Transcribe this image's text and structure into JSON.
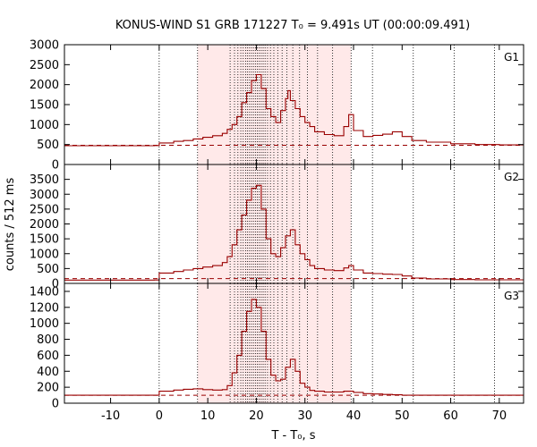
{
  "chart_data": {
    "type": "line",
    "title": "KONUS-WIND S1 GRB 171227 T₀ = 9.491s UT (00:00:09.491)",
    "xlabel": "T - T₀, s",
    "ylabel": "counts / 512 ms",
    "xlim": [
      -19.5,
      75
    ],
    "x_ticks": [
      -10,
      0,
      10,
      20,
      30,
      40,
      50,
      60,
      70
    ],
    "highlight_region": [
      7.9,
      39.5
    ],
    "colors": {
      "curve": "#990000",
      "background_level": "#990000",
      "highlight": "#ff9999",
      "frame": "#000000"
    },
    "panels": [
      {
        "name": "G1",
        "ylim": [
          0,
          3000
        ],
        "y_ticks": [
          0,
          500,
          1000,
          1500,
          2000,
          2500,
          3000
        ],
        "background_level": 480,
        "points": [
          [
            -19.5,
            470
          ],
          [
            -15,
            470
          ],
          [
            -10,
            470
          ],
          [
            -5,
            470
          ],
          [
            -1,
            475
          ],
          [
            0,
            540
          ],
          [
            3,
            580
          ],
          [
            5,
            600
          ],
          [
            7,
            640
          ],
          [
            9,
            680
          ],
          [
            11,
            720
          ],
          [
            13,
            780
          ],
          [
            14,
            880
          ],
          [
            15,
            1000
          ],
          [
            16,
            1200
          ],
          [
            17,
            1550
          ],
          [
            18,
            1800
          ],
          [
            19,
            2100
          ],
          [
            20,
            2250
          ],
          [
            21,
            1900
          ],
          [
            22,
            1400
          ],
          [
            23,
            1200
          ],
          [
            24,
            1050
          ],
          [
            25,
            1350
          ],
          [
            26,
            1650
          ],
          [
            26.5,
            1850
          ],
          [
            27,
            1600
          ],
          [
            28,
            1400
          ],
          [
            29,
            1200
          ],
          [
            30,
            1050
          ],
          [
            31,
            950
          ],
          [
            32,
            820
          ],
          [
            34,
            750
          ],
          [
            36,
            720
          ],
          [
            38,
            950
          ],
          [
            39,
            1250
          ],
          [
            40,
            850
          ],
          [
            42,
            700
          ],
          [
            44,
            730
          ],
          [
            46,
            760
          ],
          [
            48,
            820
          ],
          [
            50,
            700
          ],
          [
            52,
            600
          ],
          [
            55,
            560
          ],
          [
            60,
            520
          ],
          [
            65,
            500
          ],
          [
            70,
            490
          ],
          [
            75,
            480
          ]
        ]
      },
      {
        "name": "G2",
        "ylim": [
          0,
          4000
        ],
        "y_ticks": [
          0,
          500,
          1000,
          1500,
          2000,
          2500,
          3000,
          3500
        ],
        "background_level": 160,
        "points": [
          [
            -19.5,
            110
          ],
          [
            -15,
            110
          ],
          [
            -10,
            110
          ],
          [
            -5,
            110
          ],
          [
            -1,
            115
          ],
          [
            0,
            350
          ],
          [
            3,
            400
          ],
          [
            5,
            450
          ],
          [
            7,
            500
          ],
          [
            9,
            550
          ],
          [
            11,
            600
          ],
          [
            13,
            700
          ],
          [
            14,
            900
          ],
          [
            15,
            1300
          ],
          [
            16,
            1800
          ],
          [
            17,
            2300
          ],
          [
            18,
            2800
          ],
          [
            19,
            3200
          ],
          [
            20,
            3300
          ],
          [
            21,
            2500
          ],
          [
            22,
            1500
          ],
          [
            23,
            1000
          ],
          [
            24,
            900
          ],
          [
            25,
            1200
          ],
          [
            26,
            1600
          ],
          [
            27,
            1800
          ],
          [
            28,
            1300
          ],
          [
            29,
            1000
          ],
          [
            30,
            800
          ],
          [
            31,
            600
          ],
          [
            32,
            500
          ],
          [
            34,
            450
          ],
          [
            36,
            430
          ],
          [
            38,
            520
          ],
          [
            39,
            600
          ],
          [
            40,
            450
          ],
          [
            42,
            350
          ],
          [
            44,
            330
          ],
          [
            46,
            310
          ],
          [
            48,
            300
          ],
          [
            50,
            250
          ],
          [
            52,
            180
          ],
          [
            55,
            150
          ],
          [
            60,
            130
          ],
          [
            65,
            120
          ],
          [
            70,
            120
          ],
          [
            75,
            110
          ]
        ]
      },
      {
        "name": "G3",
        "ylim": [
          0,
          1500
        ],
        "y_ticks": [
          0,
          200,
          400,
          600,
          800,
          1000,
          1200,
          1400
        ],
        "background_level": 100,
        "points": [
          [
            -19.5,
            100
          ],
          [
            -15,
            100
          ],
          [
            -10,
            100
          ],
          [
            -5,
            100
          ],
          [
            -1,
            100
          ],
          [
            0,
            150
          ],
          [
            3,
            165
          ],
          [
            5,
            175
          ],
          [
            7,
            180
          ],
          [
            9,
            170
          ],
          [
            11,
            165
          ],
          [
            13,
            170
          ],
          [
            14,
            220
          ],
          [
            15,
            380
          ],
          [
            16,
            600
          ],
          [
            17,
            900
          ],
          [
            18,
            1150
          ],
          [
            19,
            1300
          ],
          [
            20,
            1200
          ],
          [
            21,
            900
          ],
          [
            22,
            550
          ],
          [
            23,
            350
          ],
          [
            24,
            280
          ],
          [
            25,
            300
          ],
          [
            26,
            450
          ],
          [
            27,
            550
          ],
          [
            28,
            400
          ],
          [
            29,
            250
          ],
          [
            30,
            200
          ],
          [
            31,
            160
          ],
          [
            32,
            150
          ],
          [
            34,
            140
          ],
          [
            36,
            140
          ],
          [
            38,
            150
          ],
          [
            40,
            135
          ],
          [
            42,
            120
          ],
          [
            44,
            115
          ],
          [
            46,
            110
          ],
          [
            48,
            105
          ],
          [
            50,
            100
          ],
          [
            55,
            100
          ],
          [
            60,
            100
          ],
          [
            65,
            100
          ],
          [
            70,
            100
          ],
          [
            75,
            100
          ]
        ]
      }
    ],
    "vertical_dotted_lines": [
      0,
      7.9,
      14.6,
      15.5,
      16.2,
      16.8,
      17.3,
      17.8,
      18.2,
      18.6,
      19.0,
      19.4,
      19.8,
      20.2,
      20.6,
      21.0,
      21.4,
      21.8,
      22.3,
      22.9,
      23.6,
      24.4,
      25.3,
      26.3,
      27.5,
      28.9,
      30.5,
      32.6,
      35.7,
      39.5,
      43.9,
      52.3,
      60.7,
      69.0
    ]
  }
}
